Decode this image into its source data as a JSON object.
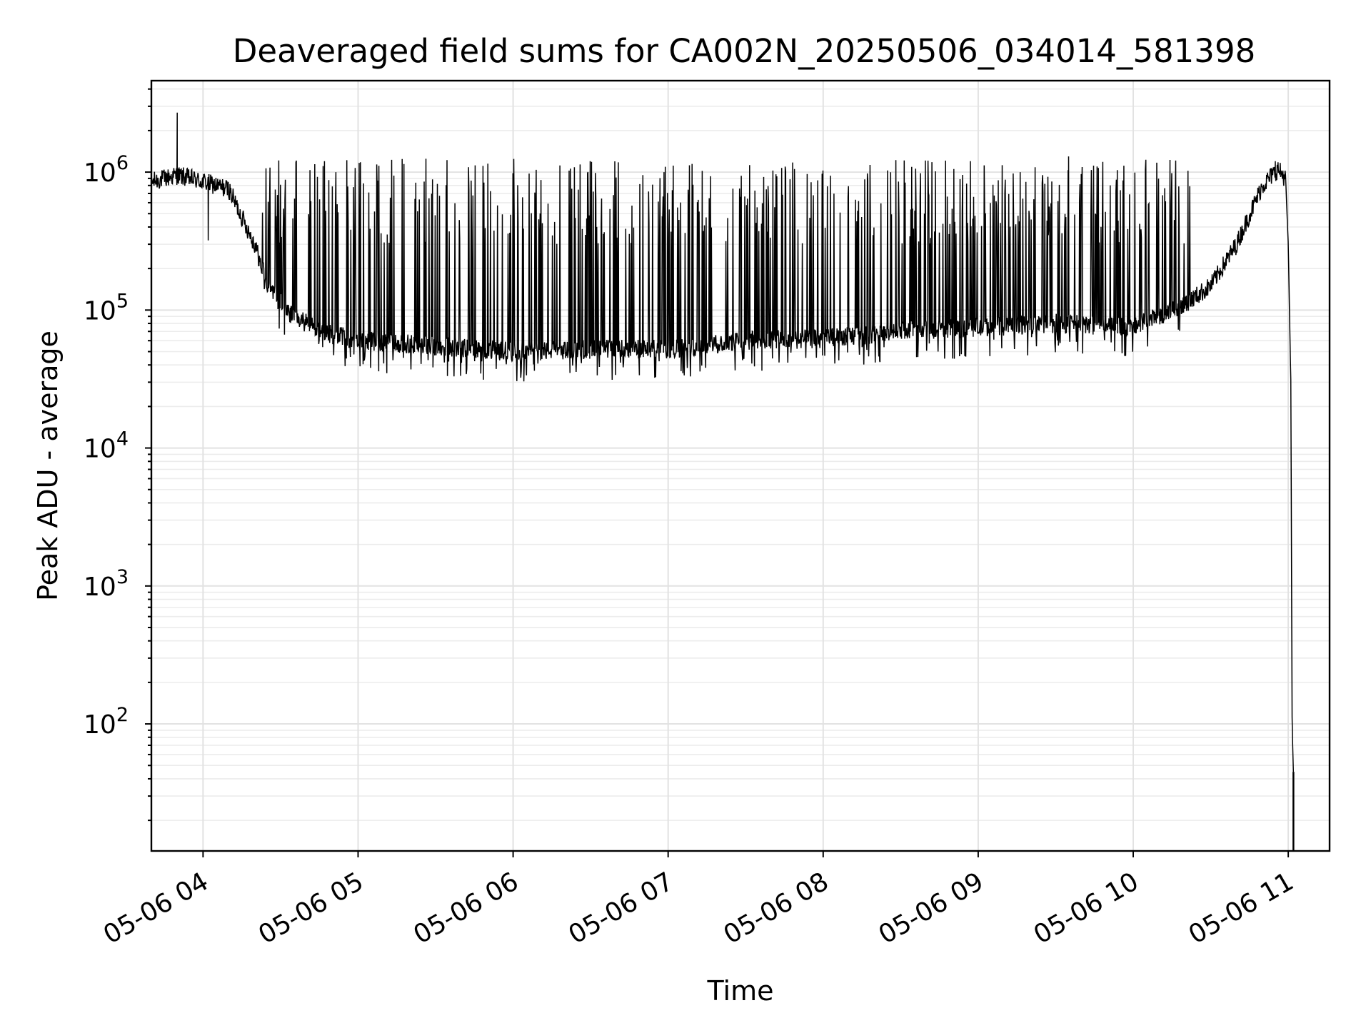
{
  "chart_data": {
    "type": "line",
    "title": "Deaveraged field sums for CA002N_20250506_034014_581398",
    "xlabel": "Time",
    "ylabel": "Peak ADU - average",
    "yscale": "log",
    "grid": true,
    "line_color": "#000000",
    "xlim": [
      "2025-05-06 03:40",
      "2025-05-06 11:16"
    ],
    "ylim": [
      12,
      4600000
    ],
    "x_ticks": [
      {
        "t": "2025-05-06 04:00",
        "label": "05-06 04"
      },
      {
        "t": "2025-05-06 05:00",
        "label": "05-06 05"
      },
      {
        "t": "2025-05-06 06:00",
        "label": "05-06 06"
      },
      {
        "t": "2025-05-06 07:00",
        "label": "05-06 07"
      },
      {
        "t": "2025-05-06 08:00",
        "label": "05-06 08"
      },
      {
        "t": "2025-05-06 09:00",
        "label": "05-06 09"
      },
      {
        "t": "2025-05-06 10:00",
        "label": "05-06 10"
      },
      {
        "t": "2025-05-06 11:00",
        "label": "05-06 11"
      }
    ],
    "y_ticks": [
      {
        "value": 100,
        "base": "10",
        "exp": "2"
      },
      {
        "value": 1000,
        "base": "10",
        "exp": "3"
      },
      {
        "value": 10000,
        "base": "10",
        "exp": "4"
      },
      {
        "value": 100000,
        "base": "10",
        "exp": "5"
      },
      {
        "value": 1000000,
        "base": "10",
        "exp": "6"
      }
    ],
    "series": [
      {
        "baseline_points": [
          [
            "2025-05-06 03:40",
            850000
          ],
          [
            "2025-05-06 03:50",
            950000
          ],
          [
            "2025-05-06 04:00",
            850000
          ],
          [
            "2025-05-06 04:10",
            750000
          ],
          [
            "2025-05-06 04:20",
            300000
          ],
          [
            "2025-05-06 04:25",
            150000
          ],
          [
            "2025-05-06 04:32",
            100000
          ],
          [
            "2025-05-06 04:45",
            70000
          ],
          [
            "2025-05-06 05:00",
            60000
          ],
          [
            "2025-05-06 05:30",
            55000
          ],
          [
            "2025-05-06 06:00",
            50000
          ],
          [
            "2025-05-06 06:30",
            52000
          ],
          [
            "2025-05-06 07:00",
            52000
          ],
          [
            "2025-05-06 07:30",
            60000
          ],
          [
            "2025-05-06 08:00",
            62000
          ],
          [
            "2025-05-06 08:30",
            70000
          ],
          [
            "2025-05-06 09:00",
            75000
          ],
          [
            "2025-05-06 09:30",
            80000
          ],
          [
            "2025-05-06 10:00",
            75000
          ],
          [
            "2025-05-06 10:20",
            110000
          ],
          [
            "2025-05-06 10:30",
            150000
          ],
          [
            "2025-05-06 10:40",
            300000
          ],
          [
            "2025-05-06 10:50",
            800000
          ],
          [
            "2025-05-06 10:56",
            1050000
          ],
          [
            "2025-05-06 10:59",
            900000
          ],
          [
            "2025-05-06 11:00",
            300000
          ],
          [
            "2025-05-06 11:01",
            30000
          ],
          [
            "2025-05-06 11:01:30",
            100
          ],
          [
            "2025-05-06 11:02",
            45
          ]
        ],
        "spike_peak_range": [
          300000,
          1250000
        ],
        "notable_peaks": [
          [
            "2025-05-06 03:50",
            2700000
          ],
          [
            "2025-05-06 04:47",
            1200000
          ],
          [
            "2025-05-06 08:57",
            1200000
          ],
          [
            "2025-05-06 09:35",
            1300000
          ],
          [
            "2025-05-06 10:55",
            1200000
          ]
        ],
        "dips": [
          [
            "2025-05-06 04:02",
            320000
          ],
          [
            "2025-05-06 05:08",
            36000
          ],
          [
            "2025-05-06 06:22",
            35000
          ],
          [
            "2025-05-06 06:55",
            37000
          ],
          [
            "2025-05-06 08:22",
            42000
          ]
        ]
      }
    ]
  }
}
